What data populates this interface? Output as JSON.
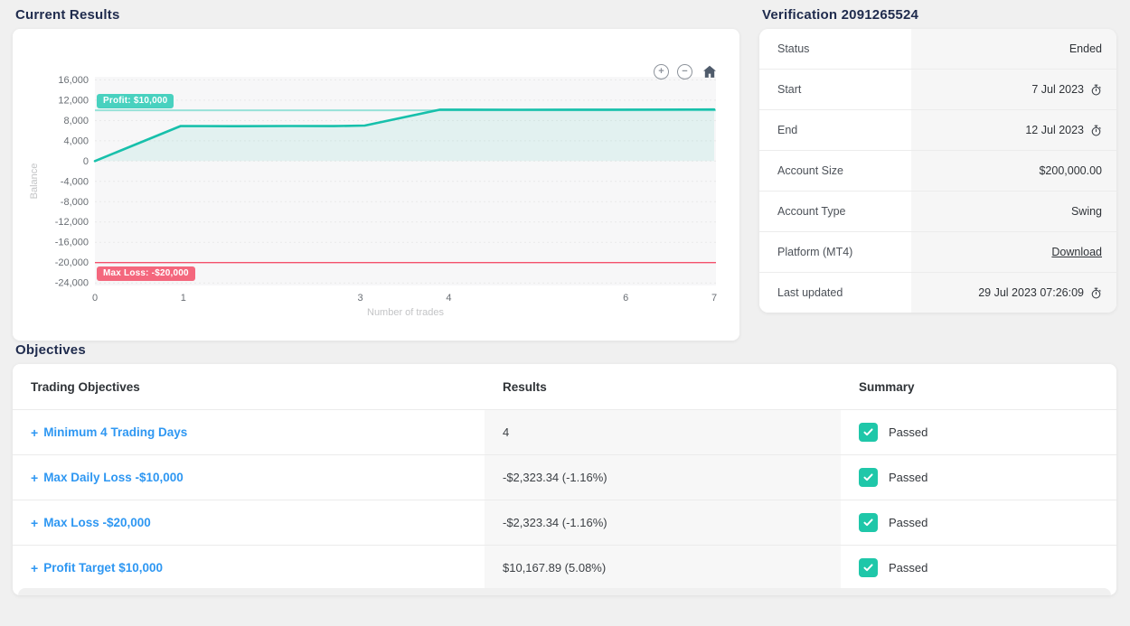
{
  "current_results": {
    "title": "Current Results",
    "controls": {
      "zoom_in": "+",
      "zoom_out": "−",
      "home": "home-icon"
    }
  },
  "chart_data": {
    "type": "line",
    "xlabel": "Number of trades",
    "ylabel": "Balance",
    "xlim": [
      0,
      7.02
    ],
    "ylim": [
      -24500,
      16600
    ],
    "xticks": [
      0,
      1,
      3,
      4,
      6,
      7
    ],
    "yticks": [
      16000,
      12000,
      8000,
      4000,
      0,
      -4000,
      -8000,
      -12000,
      -16000,
      -20000,
      -24000
    ],
    "grid": true,
    "line_color": "#17c0ab",
    "fill_color": "rgba(25,192,171,0.09)",
    "series": [
      {
        "name": "Balance",
        "x": [
          0,
          0.97,
          1.6,
          2.2,
          2.7,
          3.05,
          3.9,
          4.8,
          5.8,
          7
        ],
        "y": [
          0,
          6900,
          6875,
          6900,
          6880,
          7000,
          10120,
          10110,
          10120,
          10167.89
        ]
      }
    ],
    "reference_lines": {
      "profit": {
        "value": 10000,
        "label": "Profit: $10,000",
        "color": "#97e2d8"
      },
      "max_loss": {
        "value": -20000,
        "label": "Max Loss: -$20,000",
        "color": "#f4516c"
      }
    }
  },
  "verification": {
    "title": "Verification 2091265524",
    "rows": [
      {
        "label": "Status",
        "value": "Ended"
      },
      {
        "label": "Start",
        "value": "7 Jul 2023"
      },
      {
        "label": "End",
        "value": "12 Jul 2023"
      },
      {
        "label": "Account Size",
        "value": "$200,000.00"
      },
      {
        "label": "Account Type",
        "value": "Swing"
      },
      {
        "label": "Platform (MT4)",
        "value": "Download"
      },
      {
        "label": "Last updated",
        "value": "29 Jul 2023 07:26:09"
      }
    ]
  },
  "objectives": {
    "title": "Objectives",
    "plus": "+",
    "headers": [
      "Trading Objectives",
      "Results",
      "Summary"
    ],
    "rows": [
      {
        "objective": "Minimum 4 Trading Days",
        "result": "4",
        "summary": "Passed"
      },
      {
        "objective": "Max Daily Loss -$10,000",
        "result": "-$2,323.34 (-1.16%)",
        "summary": "Passed"
      },
      {
        "objective": "Max Loss -$20,000",
        "result": "-$2,323.34 (-1.16%)",
        "summary": "Passed"
      },
      {
        "objective": "Profit Target $10,000",
        "result": "$10,167.89 (5.08%)",
        "summary": "Passed"
      }
    ]
  }
}
